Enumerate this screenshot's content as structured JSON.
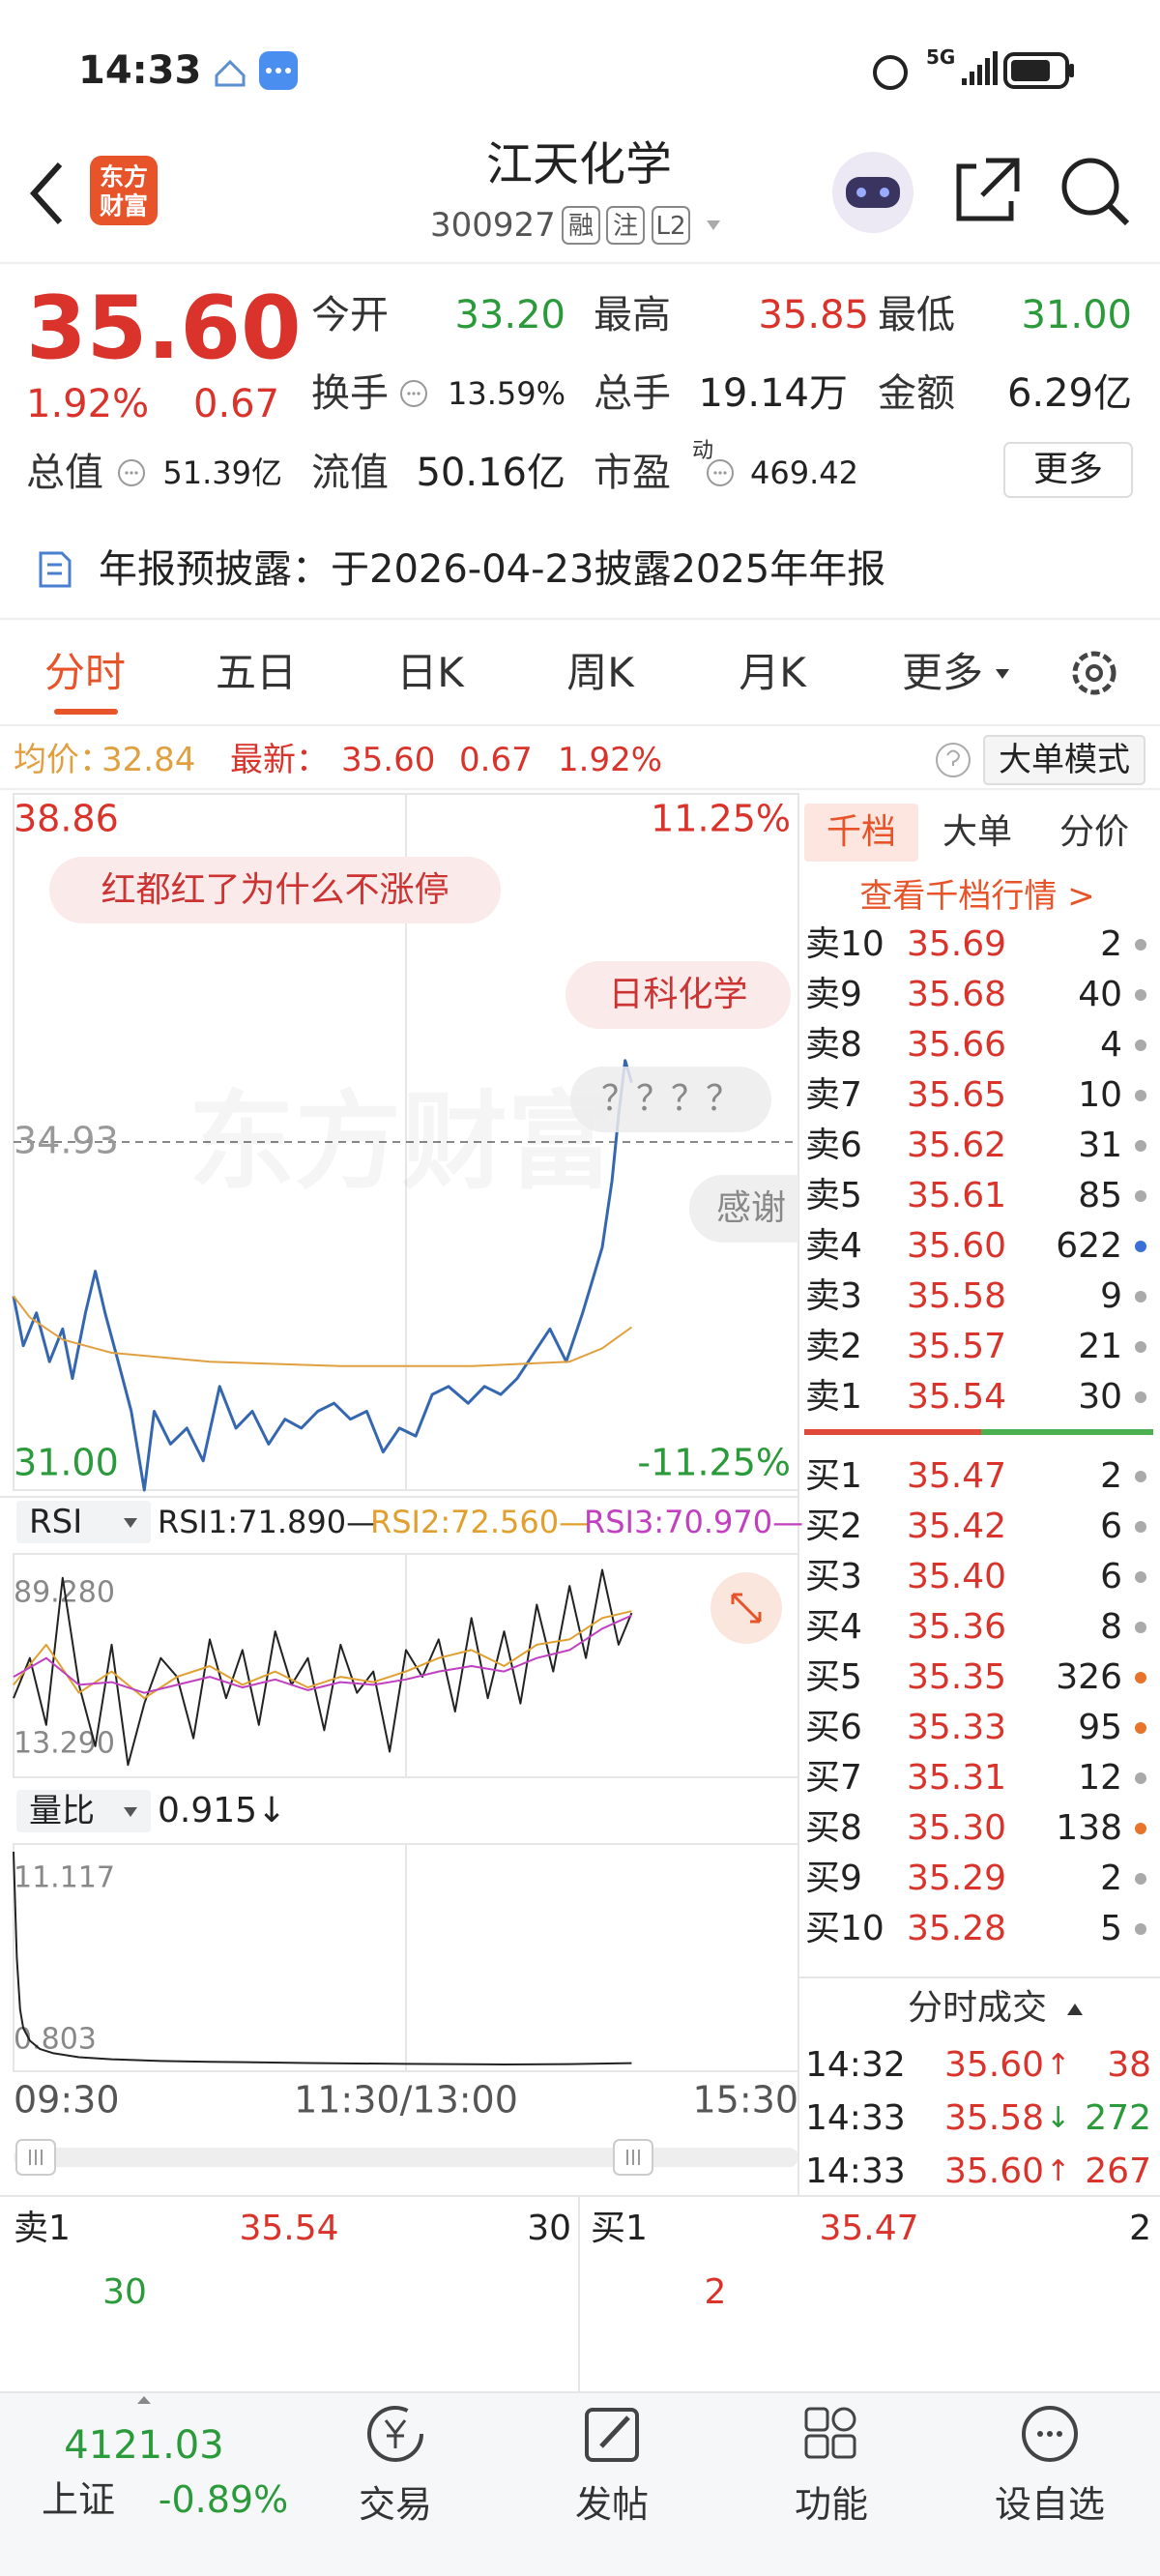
{
  "status_bar": {
    "time": "14:33",
    "network": "5G"
  },
  "header": {
    "logo": [
      "东方",
      "财富"
    ],
    "name": "江天化学",
    "code": "300927",
    "badges": [
      "融",
      "注",
      "L2"
    ]
  },
  "quote": {
    "price": "35.60",
    "change_pct": "1.92%",
    "change": "0.67",
    "fields": [
      {
        "label": "今开",
        "value": "33.20",
        "color": "#2a9a3a"
      },
      {
        "label": "最高",
        "value": "35.85",
        "color": "#d9332b"
      },
      {
        "label": "最低",
        "value": "31.00",
        "color": "#2a9a3a"
      },
      {
        "label": "换手",
        "value": "13.59%",
        "color": "#222222"
      },
      {
        "label": "总手",
        "value": "19.14万",
        "color": "#222222"
      },
      {
        "label": "金额",
        "value": "6.29亿",
        "color": "#222222"
      },
      {
        "label": "总值",
        "value": "51.39亿",
        "color": "#222222"
      },
      {
        "label": "流值",
        "value": "50.16亿",
        "color": "#222222"
      },
      {
        "label": "市盈",
        "value": "469.42",
        "color": "#222222",
        "sup": "动"
      }
    ],
    "more": "更多"
  },
  "notice": "年报预披露：于2026-04-23披露2025年年报",
  "tabs": [
    "分时",
    "五日",
    "日K",
    "周K",
    "月K",
    "更多"
  ],
  "info_line": {
    "avg_label": "均价：",
    "avg": "32.84",
    "last_label": "最新：",
    "last": "35.60",
    "change": "0.67",
    "change_pct": "1.92%",
    "mode": "大单模式"
  },
  "watermark": "东方财富",
  "comments": [
    "红都红了为什么不涨停",
    "日科化学",
    "？？？？",
    "感谢"
  ],
  "rsi_header": {
    "name": "RSI",
    "rsi1": "RSI1:71.890—",
    "rsi2": "RSI2:72.560—",
    "rsi3": "RSI3:70.970—"
  },
  "vr_header": {
    "name": "量比",
    "value": "0.915↓"
  },
  "chart_data": [
    {
      "type": "line",
      "xlim": [
        0,
        240
      ],
      "xticks": [
        {
          "value": 0,
          "label": "09:30"
        },
        {
          "value": 120,
          "label": "11:30/13:00"
        },
        {
          "value": 240,
          "label": "15:30"
        }
      ],
      "ylim": [
        31,
        38.86
      ],
      "yticks": [
        {
          "value": 38.86,
          "label": "38.86"
        },
        {
          "value": 31,
          "label": "31.00"
        }
      ],
      "y2lim": [
        -11.25,
        11.25
      ],
      "y2ticks": [
        {
          "value": 11.25,
          "label": "11.25%"
        },
        {
          "value": -11.25,
          "label": "-11.25%"
        }
      ],
      "ref_line": {
        "value": 34.93,
        "label": "34.93"
      },
      "series": [
        {
          "color": "#3567b0",
          "x": [
            0,
            3,
            7,
            11,
            15,
            18,
            22,
            25,
            28,
            32,
            36,
            40,
            43,
            48,
            53,
            58,
            63,
            68,
            73,
            78,
            83,
            88,
            93,
            98,
            103,
            108,
            113,
            118,
            123,
            128,
            133,
            139,
            144,
            149,
            154,
            159,
            164,
            169,
            174,
            177,
            180,
            183,
            185,
            187,
            189
          ],
          "values": [
            33.19,
            32.63,
            33.0,
            32.45,
            32.82,
            32.26,
            33.0,
            33.47,
            33.0,
            32.45,
            31.89,
            31.0,
            31.89,
            31.52,
            31.7,
            31.33,
            32.17,
            31.7,
            31.89,
            31.52,
            31.8,
            31.7,
            31.89,
            31.98,
            31.8,
            31.89,
            31.43,
            31.7,
            31.61,
            32.08,
            32.17,
            31.98,
            32.17,
            32.08,
            32.26,
            32.54,
            32.82,
            32.45,
            33.0,
            33.37,
            33.74,
            34.49,
            35.23,
            35.85,
            35.6
          ]
        },
        {
          "color": "#e0a040",
          "x": [
            0,
            5,
            15,
            30,
            60,
            100,
            140,
            170,
            180,
            189
          ],
          "values": [
            33.19,
            32.95,
            32.7,
            32.55,
            32.45,
            32.4,
            32.4,
            32.45,
            32.6,
            32.84
          ]
        }
      ]
    },
    {
      "type": "line",
      "xlim": [
        0,
        240
      ],
      "ylim": [
        13.29,
        89.28
      ],
      "yticks": [
        {
          "value": 89.28,
          "label": "89.280"
        },
        {
          "value": 13.29,
          "label": "13.290"
        }
      ],
      "series": [
        {
          "color": "#222222",
          "x": [
            0,
            5,
            10,
            15,
            20,
            25,
            30,
            35,
            40,
            45,
            50,
            55,
            60,
            65,
            70,
            75,
            80,
            85,
            90,
            95,
            100,
            105,
            110,
            115,
            120,
            125,
            130,
            135,
            140,
            145,
            150,
            155,
            160,
            165,
            170,
            175,
            180,
            185,
            189
          ],
          "values": [
            40,
            55,
            30,
            85,
            45,
            22,
            60,
            15,
            38,
            55,
            48,
            25,
            62,
            40,
            58,
            30,
            65,
            45,
            55,
            28,
            60,
            42,
            50,
            20,
            58,
            48,
            62,
            35,
            70,
            40,
            65,
            38,
            75,
            50,
            82,
            55,
            88,
            60,
            71.89
          ]
        },
        {
          "color": "#e0a030",
          "x": [
            0,
            10,
            20,
            30,
            40,
            50,
            60,
            70,
            80,
            90,
            100,
            110,
            120,
            130,
            140,
            150,
            160,
            170,
            180,
            189
          ],
          "values": [
            45,
            60,
            42,
            50,
            40,
            48,
            52,
            45,
            50,
            44,
            48,
            46,
            50,
            55,
            58,
            52,
            60,
            62,
            70,
            72.56
          ]
        },
        {
          "color": "#c040c0",
          "x": [
            0,
            10,
            20,
            30,
            40,
            50,
            60,
            70,
            80,
            90,
            100,
            110,
            120,
            130,
            140,
            150,
            160,
            170,
            180,
            189
          ],
          "values": [
            48,
            55,
            45,
            46,
            42,
            45,
            48,
            44,
            47,
            43,
            46,
            45,
            47,
            50,
            52,
            50,
            55,
            58,
            66,
            70.97
          ]
        }
      ]
    },
    {
      "type": "line",
      "xlim": [
        0,
        240
      ],
      "ylim": [
        0.803,
        11.117
      ],
      "yticks": [
        {
          "value": 11.117,
          "label": "11.117"
        },
        {
          "value": 0.803,
          "label": "0.803"
        }
      ],
      "series": [
        {
          "color": "#222222",
          "x": [
            0,
            1,
            2,
            3,
            5,
            8,
            12,
            20,
            30,
            45,
            60,
            90,
            120,
            150,
            170,
            189
          ],
          "values": [
            11.117,
            6,
            3.5,
            2.6,
            2.0,
            1.6,
            1.4,
            1.2,
            1.1,
            1.02,
            0.98,
            0.92,
            0.88,
            0.85,
            0.87,
            0.915
          ]
        }
      ]
    }
  ],
  "order_book": {
    "tabs": [
      "千档",
      "大单",
      "分价"
    ],
    "link": "查看千档行情 >",
    "asks": [
      {
        "label": "卖10",
        "price": "35.69",
        "volume": "2",
        "dot": "#aaaaaa"
      },
      {
        "label": "卖9",
        "price": "35.68",
        "volume": "40",
        "dot": "#aaaaaa"
      },
      {
        "label": "卖8",
        "price": "35.66",
        "volume": "4",
        "dot": "#aaaaaa"
      },
      {
        "label": "卖7",
        "price": "35.65",
        "volume": "10",
        "dot": "#aaaaaa"
      },
      {
        "label": "卖6",
        "price": "35.62",
        "volume": "31",
        "dot": "#aaaaaa"
      },
      {
        "label": "卖5",
        "price": "35.61",
        "volume": "85",
        "dot": "#aaaaaa"
      },
      {
        "label": "卖4",
        "price": "35.60",
        "volume": "622",
        "dot": "#3a6fd8"
      },
      {
        "label": "卖3",
        "price": "35.58",
        "volume": "9",
        "dot": "#aaaaaa"
      },
      {
        "label": "卖2",
        "price": "35.57",
        "volume": "21",
        "dot": "#aaaaaa"
      },
      {
        "label": "卖1",
        "price": "35.54",
        "volume": "30",
        "dot": "#aaaaaa"
      }
    ],
    "bids": [
      {
        "label": "买1",
        "price": "35.47",
        "volume": "2",
        "dot": "#aaaaaa"
      },
      {
        "label": "买2",
        "price": "35.42",
        "volume": "6",
        "dot": "#aaaaaa"
      },
      {
        "label": "买3",
        "price": "35.40",
        "volume": "6",
        "dot": "#aaaaaa"
      },
      {
        "label": "买4",
        "price": "35.36",
        "volume": "8",
        "dot": "#aaaaaa"
      },
      {
        "label": "买5",
        "price": "35.35",
        "volume": "326",
        "dot": "#e8742c"
      },
      {
        "label": "买6",
        "price": "35.33",
        "volume": "95",
        "dot": "#e8742c"
      },
      {
        "label": "买7",
        "price": "35.31",
        "volume": "12",
        "dot": "#aaaaaa"
      },
      {
        "label": "买8",
        "price": "35.30",
        "volume": "138",
        "dot": "#e8742c"
      },
      {
        "label": "买9",
        "price": "35.29",
        "volume": "2",
        "dot": "#aaaaaa"
      },
      {
        "label": "买10",
        "price": "35.28",
        "volume": "5",
        "dot": "#aaaaaa"
      }
    ]
  },
  "trades": {
    "title": "分时成交",
    "rows": [
      {
        "time": "14:32",
        "price": "35.60",
        "dir": "↑",
        "volume": "38",
        "color": "#d9332b"
      },
      {
        "time": "14:33",
        "price": "35.58",
        "dir": "↓",
        "volume": "272",
        "color": "#2a9a3a"
      },
      {
        "time": "14:33",
        "price": "35.60",
        "dir": "↑",
        "volume": "267",
        "color": "#d9332b"
      }
    ]
  },
  "bottom_quote": {
    "ask": {
      "label": "卖1",
      "price": "35.54",
      "volume": "30"
    },
    "bid": {
      "label": "买1",
      "price": "35.47",
      "volume": "2"
    },
    "ask_qty": "30",
    "bid_qty": "2"
  },
  "nav": {
    "index_value": "4121.03",
    "index_name": "上证",
    "index_change": "-0.89%",
    "items": [
      "交易",
      "发帖",
      "功能",
      "设自选"
    ]
  }
}
